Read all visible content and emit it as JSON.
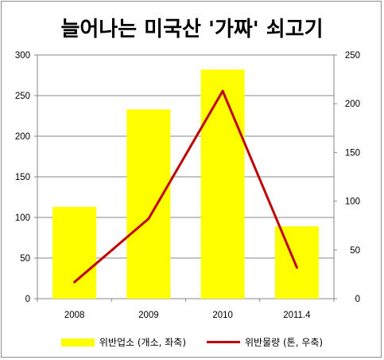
{
  "chart_data": {
    "type": "bar",
    "title": "늘어나는 미국산 '가짜' 쇠고기",
    "categories": [
      "2008",
      "2009",
      "2010",
      "2011.4"
    ],
    "series": [
      {
        "name": "위반업소 (개소, 좌축)",
        "type": "bar",
        "axis": "left",
        "color": "#ffff00",
        "values": [
          113,
          233,
          282,
          89
        ]
      },
      {
        "name": "위반물량 (톤, 우축)",
        "type": "line",
        "axis": "right",
        "color": "#c00000",
        "values": [
          17,
          82,
          213,
          32
        ]
      }
    ],
    "y_left": {
      "min": 0,
      "max": 300,
      "ticks": [
        "0",
        "50",
        "100",
        "150",
        "200",
        "250",
        "300"
      ]
    },
    "y_right": {
      "min": 0,
      "max": 250,
      "ticks": [
        "0",
        "50",
        "100",
        "150",
        "200",
        "250"
      ]
    },
    "grid": true,
    "legend_position": "bottom"
  }
}
